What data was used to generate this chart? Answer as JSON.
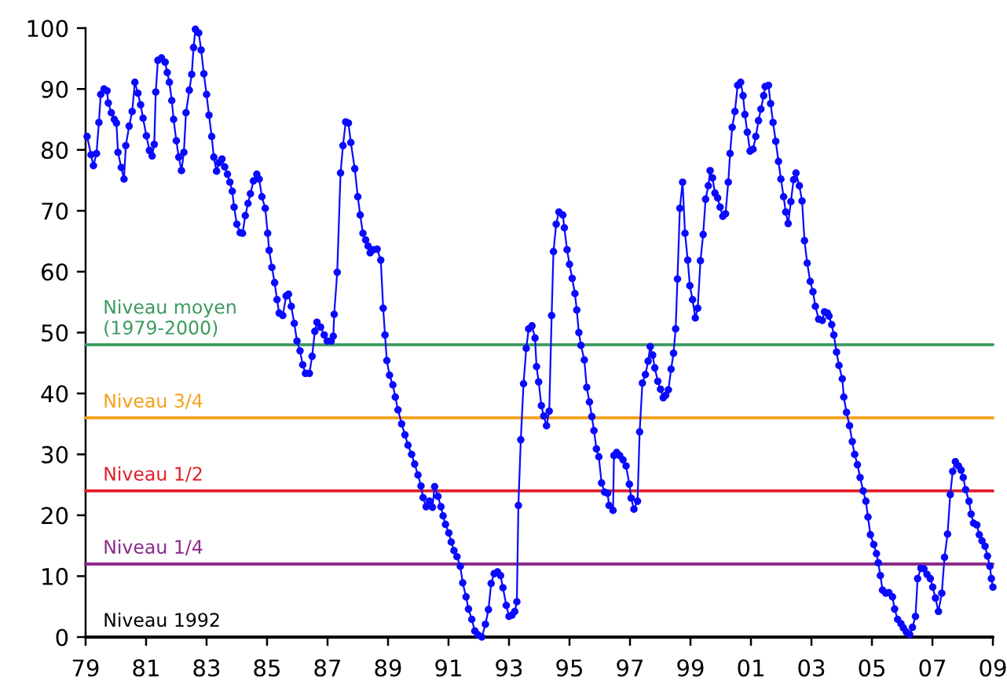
{
  "chart_data": {
    "type": "line",
    "xlim": [
      1979,
      2009
    ],
    "ylim": [
      0,
      100
    ],
    "xticks": [
      {
        "value": 1979,
        "label": "79"
      },
      {
        "value": 1981,
        "label": "81"
      },
      {
        "value": 1983,
        "label": "83"
      },
      {
        "value": 1985,
        "label": "85"
      },
      {
        "value": 1987,
        "label": "87"
      },
      {
        "value": 1989,
        "label": "89"
      },
      {
        "value": 1991,
        "label": "91"
      },
      {
        "value": 1993,
        "label": "93"
      },
      {
        "value": 1995,
        "label": "95"
      },
      {
        "value": 1997,
        "label": "97"
      },
      {
        "value": 1999,
        "label": "99"
      },
      {
        "value": 2001,
        "label": "01"
      },
      {
        "value": 2003,
        "label": "03"
      },
      {
        "value": 2005,
        "label": "05"
      },
      {
        "value": 2007,
        "label": "07"
      },
      {
        "value": 2009,
        "label": "09"
      }
    ],
    "yticks": [
      0,
      10,
      20,
      30,
      40,
      50,
      60,
      70,
      80,
      90,
      100
    ],
    "marker": "circle",
    "line_style": "solid",
    "ref_lines": [
      {
        "axis": "y",
        "value": 48,
        "label": "Niveau moyen (1979-2000)",
        "color": "#3c9a5f",
        "line_style": "solid"
      },
      {
        "axis": "y",
        "value": 36,
        "label": "Niveau 3/4",
        "color": "#f5a01a",
        "line_style": "solid"
      },
      {
        "axis": "y",
        "value": 24,
        "label": "Niveau 1/2",
        "color": "#e0202a",
        "line_style": "solid"
      },
      {
        "axis": "y",
        "value": 12,
        "label": "Niveau 1/4",
        "color": "#8b2a8b",
        "line_style": "solid"
      },
      {
        "axis": "y",
        "value": 0,
        "label": "Niveau 1992",
        "color": "#000000",
        "line_style": "solid"
      }
    ],
    "series": [
      {
        "color": "#0a0aff",
        "x": [
          1979.05,
          1979.18,
          1979.26,
          1979.36,
          1979.44,
          1979.5,
          1979.61,
          1979.71,
          1979.75,
          1979.85,
          1979.95,
          1980.02,
          1980.07,
          1980.18,
          1980.27,
          1980.33,
          1980.44,
          1980.54,
          1980.63,
          1980.73,
          1980.82,
          1980.9,
          1981.01,
          1981.11,
          1981.2,
          1981.27,
          1981.32,
          1981.39,
          1981.51,
          1981.63,
          1981.7,
          1981.77,
          1981.85,
          1981.91,
          1982.0,
          1982.08,
          1982.17,
          1982.25,
          1982.32,
          1982.43,
          1982.51,
          1982.57,
          1982.63,
          1982.74,
          1982.82,
          1982.91,
          1983.0,
          1983.08,
          1983.17,
          1983.24,
          1983.33,
          1983.41,
          1983.51,
          1983.6,
          1983.69,
          1983.77,
          1983.85,
          1983.91,
          1984.0,
          1984.11,
          1984.19,
          1984.28,
          1984.37,
          1984.45,
          1984.55,
          1984.66,
          1984.74,
          1984.83,
          1984.94,
          1985.02,
          1985.07,
          1985.16,
          1985.25,
          1985.33,
          1985.4,
          1985.52,
          1985.63,
          1985.71,
          1985.8,
          1985.9,
          1985.99,
          1986.09,
          1986.18,
          1986.27,
          1986.4,
          1986.49,
          1986.58,
          1986.65,
          1986.77,
          1986.89,
          1986.99,
          1987.12,
          1987.19,
          1987.22,
          1987.32,
          1987.43,
          1987.51,
          1987.6,
          1987.69,
          1987.77,
          1987.9,
          1988.0,
          1988.08,
          1988.17,
          1988.26,
          1988.34,
          1988.41,
          1988.52,
          1988.64,
          1988.76,
          1988.84,
          1988.9,
          1988.96,
          1989.05,
          1989.16,
          1989.24,
          1989.33,
          1989.45,
          1989.56,
          1989.66,
          1989.78,
          1989.88,
          1989.99,
          1990.09,
          1990.16,
          1990.26,
          1990.37,
          1990.47,
          1990.54,
          1990.65,
          1990.75,
          1990.82,
          1990.9,
          1991.01,
          1991.09,
          1991.18,
          1991.28,
          1991.39,
          1991.47,
          1991.58,
          1991.66,
          1991.77,
          1991.87,
          1991.97,
          1992.1,
          1992.22,
          1992.32,
          1992.41,
          1992.51,
          1992.62,
          1992.72,
          1992.8,
          1992.91,
          1993.0,
          1993.1,
          1993.19,
          1993.26,
          1993.31,
          1993.39,
          1993.48,
          1993.57,
          1993.65,
          1993.76,
          1993.86,
          1993.91,
          1993.98,
          1994.07,
          1994.15,
          1994.24,
          1994.33,
          1994.41,
          1994.47,
          1994.56,
          1994.65,
          1994.78,
          1994.83,
          1994.92,
          1995.0,
          1995.09,
          1995.18,
          1995.24,
          1995.31,
          1995.38,
          1995.49,
          1995.57,
          1995.66,
          1995.74,
          1995.81,
          1995.89,
          1995.97,
          1996.06,
          1996.16,
          1996.26,
          1996.31,
          1996.44,
          1996.47,
          1996.56,
          1996.66,
          1996.77,
          1996.87,
          1996.98,
          1997.04,
          1997.13,
          1997.25,
          1997.32,
          1997.41,
          1997.51,
          1997.6,
          1997.67,
          1997.75,
          1997.82,
          1997.92,
          1998.01,
          1998.1,
          1998.18,
          1998.27,
          1998.36,
          1998.44,
          1998.51,
          1998.57,
          1998.65,
          1998.74,
          1998.82,
          1998.91,
          1998.98,
          1999.07,
          1999.16,
          1999.24,
          1999.33,
          1999.42,
          1999.5,
          1999.59,
          1999.65,
          1999.73,
          1999.81,
          1999.9,
          1999.98,
          2000.07,
          2000.16,
          2000.25,
          2000.31,
          2000.38,
          2000.47,
          2000.56,
          2000.66,
          2000.74,
          2000.8,
          2000.88,
          2000.97,
          2001.07,
          2001.16,
          2001.25,
          2001.33,
          2001.42,
          2001.47,
          2001.58,
          2001.65,
          2001.73,
          2001.82,
          2001.91,
          2001.99,
          2002.08,
          2002.15,
          2002.23,
          2002.32,
          2002.41,
          2002.49,
          2002.6,
          2002.69,
          2002.77,
          2002.86,
          2002.96,
          2003.05,
          2003.13,
          2003.24,
          2003.36,
          2003.43,
          2003.53,
          2003.58,
          2003.67,
          2003.74,
          2003.83,
          2003.91,
          2004.02,
          2004.07,
          2004.16,
          2004.26,
          2004.35,
          2004.43,
          2004.52,
          2004.61,
          2004.71,
          2004.8,
          2004.87,
          2004.95,
          2005.06,
          2005.15,
          2005.21,
          2005.28,
          2005.35,
          2005.46,
          2005.56,
          2005.68,
          2005.75,
          2005.85,
          2005.96,
          2006.04,
          2006.14,
          2006.25,
          2006.34,
          2006.44,
          2006.51,
          2006.62,
          2006.72,
          2006.82,
          2006.93,
          2007.01,
          2007.1,
          2007.2,
          2007.31,
          2007.4,
          2007.5,
          2007.59,
          2007.67,
          2007.76,
          2007.86,
          2007.95,
          2008.02,
          2008.1,
          2008.21,
          2008.28,
          2008.36,
          2008.47,
          2008.55,
          2008.64,
          2008.74,
          2008.82,
          2008.9,
          2008.95,
          2009.0
        ],
        "values": [
          82.2,
          79.2,
          77.4,
          79.4,
          84.5,
          89.1,
          90.0,
          89.7,
          87.7,
          86.1,
          85.0,
          84.4,
          79.6,
          77.1,
          75.2,
          80.7,
          83.9,
          86.3,
          91.1,
          89.3,
          87.4,
          85.2,
          82.3,
          79.9,
          79.0,
          80.9,
          89.5,
          94.7,
          95.1,
          94.4,
          92.7,
          91.1,
          88.1,
          85.0,
          81.5,
          78.8,
          76.6,
          79.6,
          86.1,
          89.8,
          92.4,
          96.8,
          99.8,
          99.2,
          96.4,
          92.5,
          89.1,
          85.7,
          82.2,
          78.8,
          76.5,
          77.9,
          78.5,
          77.2,
          76.0,
          74.7,
          73.2,
          70.6,
          67.8,
          66.4,
          66.3,
          69.2,
          71.2,
          72.8,
          74.9,
          76.0,
          75.2,
          72.3,
          70.4,
          66.3,
          63.5,
          60.7,
          58.2,
          55.4,
          53.2,
          52.8,
          56.0,
          56.3,
          54.3,
          51.5,
          48.6,
          47.0,
          44.7,
          43.3,
          43.3,
          46.1,
          50.2,
          51.7,
          50.9,
          49.6,
          48.6,
          48.6,
          49.4,
          53.0,
          59.9,
          76.2,
          80.7,
          84.6,
          84.4,
          81.2,
          76.9,
          72.3,
          69.3,
          66.3,
          65.2,
          64.2,
          63.1,
          63.6,
          63.7,
          61.9,
          54.0,
          49.6,
          45.4,
          43.0,
          41.4,
          39.4,
          37.3,
          35.0,
          33.2,
          31.5,
          30.0,
          28.4,
          26.6,
          24.8,
          22.9,
          21.4,
          22.3,
          21.3,
          24.7,
          23.1,
          21.4,
          19.9,
          18.5,
          17.1,
          15.6,
          14.2,
          13.2,
          11.6,
          8.9,
          6.6,
          4.6,
          2.9,
          1.0,
          0.4,
          0.0,
          2.1,
          4.5,
          8.8,
          10.4,
          10.7,
          10.1,
          8.1,
          5.2,
          3.4,
          3.6,
          4.2,
          5.8,
          21.6,
          32.4,
          41.6,
          47.4,
          50.6,
          51.1,
          49.1,
          44.4,
          41.9,
          38.0,
          36.3,
          34.7,
          37.1,
          52.8,
          63.3,
          67.8,
          69.8,
          69.3,
          67.2,
          63.6,
          61.2,
          58.9,
          56.4,
          53.7,
          50.0,
          47.9,
          45.5,
          41.0,
          38.6,
          36.2,
          33.9,
          30.9,
          29.6,
          25.3,
          23.8,
          23.6,
          21.6,
          20.8,
          29.8,
          30.3,
          29.8,
          29.1,
          28.1,
          25.1,
          22.8,
          21.0,
          22.3,
          33.7,
          41.7,
          43.1,
          45.3,
          47.7,
          46.3,
          44.2,
          42.0,
          40.7,
          39.3,
          39.7,
          40.6,
          44.0,
          46.6,
          50.6,
          58.8,
          70.4,
          74.7,
          66.3,
          61.9,
          57.7,
          55.4,
          52.4,
          54.0,
          61.8,
          66.1,
          71.9,
          74.1,
          76.6,
          75.4,
          72.9,
          72.1,
          70.6,
          69.1,
          69.5,
          74.7,
          79.4,
          83.7,
          86.3,
          90.6,
          91.1,
          88.9,
          85.8,
          82.9,
          79.8,
          80.1,
          82.2,
          84.8,
          86.7,
          88.9,
          90.4,
          90.6,
          87.6,
          84.5,
          81.4,
          78.1,
          75.2,
          72.3,
          69.8,
          67.9,
          71.5,
          75.1,
          76.2,
          74.1,
          71.6,
          65.1,
          61.4,
          58.4,
          56.7,
          54.3,
          52.2,
          52.0,
          53.4,
          53.2,
          52.7,
          51.3,
          49.6,
          46.8,
          44.6,
          42.4,
          39.4,
          36.9,
          34.7,
          32.1,
          30.0,
          28.3,
          26.2,
          24.0,
          22.3,
          19.7,
          16.8,
          15.2,
          13.7,
          12.2,
          10.1,
          7.7,
          7.2,
          7.3,
          6.6,
          4.6,
          2.9,
          2.2,
          1.5,
          0.8,
          0.4,
          1.6,
          3.4,
          9.6,
          11.3,
          11.2,
          10.3,
          9.6,
          8.2,
          6.4,
          4.2,
          7.2,
          13.1,
          16.9,
          23.4,
          27.2,
          28.8,
          28.1,
          27.4,
          26.2,
          24.2,
          22.3,
          20.2,
          18.7,
          18.4,
          16.8,
          15.8,
          14.9,
          13.3,
          11.6,
          9.6,
          8.2
        ]
      }
    ]
  }
}
